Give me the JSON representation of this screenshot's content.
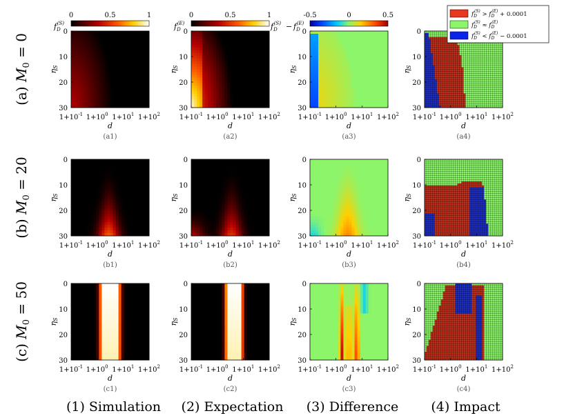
{
  "figure": {
    "row_labels": [
      "(a) M₀ = 0",
      "(b) M₀ = 20",
      "(c) M₀ = 50"
    ],
    "column_labels": [
      "(1) Simulation",
      "(2) Expectation",
      "(3) Difference",
      "(4) Impact"
    ],
    "panel_captions": [
      [
        "(a1)",
        "(a2)",
        "(a3)",
        "(a4)"
      ],
      [
        "(b1)",
        "(b2)",
        "(b3)",
        "(b4)"
      ],
      [
        "(c1)",
        "(c2)",
        "(c3)",
        "(c4)"
      ]
    ]
  },
  "colorbars": [
    {
      "label": "f_D^(S)",
      "colormap": "hot",
      "ticks": [
        "0",
        "0.5",
        "1"
      ]
    },
    {
      "label": "f_D^(E)",
      "colormap": "hot",
      "ticks": [
        "0",
        "0.5",
        "1"
      ]
    },
    {
      "label": "f_D^(S) − f_D^(E)",
      "colormap": "jet",
      "ticks": [
        "-0.5",
        "0",
        "0.5"
      ]
    }
  ],
  "legend": {
    "entries": [
      {
        "label": "f_D^(S) > f_D^(E) + 0.0001",
        "color": "#e8371c"
      },
      {
        "label": "f_D^(S) ≈ f_D^(E)",
        "color": "#8cf56a"
      },
      {
        "label": "f_D^(S) < f_D^(E) − 0.0001",
        "color": "#0a23e8"
      }
    ]
  },
  "chart_data": {
    "type": "heatmap",
    "xlabel": "d",
    "ylabel": "η_S",
    "x_ticks": [
      "1+10⁻¹",
      "1+10⁰",
      "1+10¹",
      "1+10²"
    ],
    "y_ticks": [
      "0",
      "10",
      "20",
      "30"
    ],
    "ylim": [
      0,
      30
    ],
    "x_scale": "log(d-1)",
    "x_range_log10": [
      -1,
      2
    ],
    "panels": [
      {
        "id": "a1",
        "M0": 0,
        "kind": "simulation",
        "peak_value": 0.35,
        "peak_log_d": -0.9,
        "peak_eta": 30
      },
      {
        "id": "a2",
        "M0": 0,
        "kind": "expectation",
        "peak_value": 0.75,
        "peak_log_d": -0.95,
        "peak_eta": 30
      },
      {
        "id": "a3",
        "M0": 0,
        "kind": "difference",
        "min_value": -0.35,
        "max_value": 0.15
      },
      {
        "id": "a4",
        "M0": 0,
        "kind": "impact",
        "regions": [
          "blue near small d",
          "red intermediate",
          "green large d"
        ]
      },
      {
        "id": "b1",
        "M0": 20,
        "kind": "simulation",
        "peak_value": 0.6,
        "peak_log_d": 0.45,
        "peak_eta": 28
      },
      {
        "id": "b2",
        "M0": 20,
        "kind": "expectation",
        "peak_value": 0.5,
        "peak_log_d": 0.55,
        "peak_eta": 26
      },
      {
        "id": "b3",
        "M0": 20,
        "kind": "difference",
        "min_value": -0.1,
        "max_value": 0.25
      },
      {
        "id": "b4",
        "M0": 20,
        "kind": "impact",
        "regions": [
          "green top",
          "red middle",
          "blue bottom-left and right"
        ]
      },
      {
        "id": "c1",
        "M0": 50,
        "kind": "simulation",
        "peak_value": 1.0,
        "band_log_d": [
          0.15,
          0.85
        ]
      },
      {
        "id": "c2",
        "M0": 50,
        "kind": "expectation",
        "peak_value": 1.0,
        "band_log_d": [
          0.35,
          0.95
        ]
      },
      {
        "id": "c3",
        "M0": 50,
        "kind": "difference",
        "min_value": -0.15,
        "max_value": 0.45
      },
      {
        "id": "c4",
        "M0": 50,
        "kind": "impact",
        "regions": [
          "green outer",
          "red band",
          "blue right"
        ]
      }
    ]
  }
}
